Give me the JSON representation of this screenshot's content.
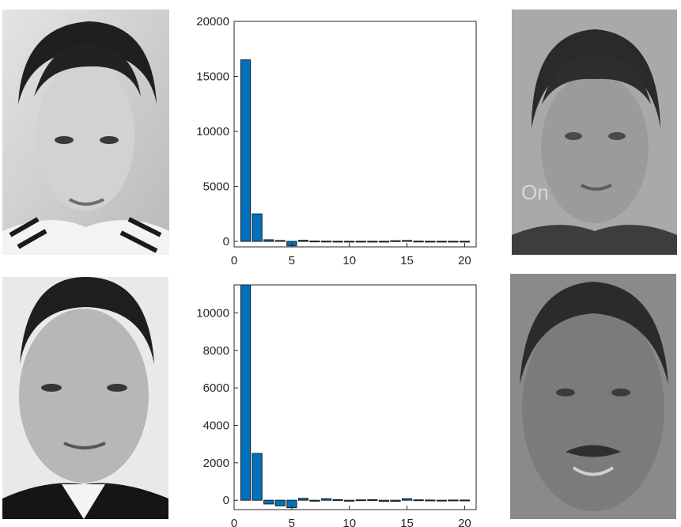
{
  "colors": {
    "bar": "#0072BD",
    "bar_edge": "#1b1b1b",
    "axis": "#262626",
    "background": "#ffffff"
  },
  "photos": [
    {
      "position": "top-left",
      "icon": "face-photo-grayscale"
    },
    {
      "position": "top-right",
      "icon": "face-photo-grayscale"
    },
    {
      "position": "bottom-left",
      "icon": "face-photo-grayscale"
    },
    {
      "position": "bottom-right",
      "icon": "face-photo-grayscale"
    }
  ],
  "photo_texts": {
    "top_right_watermark": "On"
  },
  "chart_data": [
    {
      "type": "bar",
      "title": "",
      "xlabel": "",
      "ylabel": "",
      "xlim": [
        0,
        21
      ],
      "ylim": [
        -500,
        20000
      ],
      "xticks": [
        0,
        5,
        10,
        15,
        20
      ],
      "yticks": [
        0,
        5000,
        10000,
        15000,
        20000
      ],
      "x": [
        1,
        2,
        3,
        4,
        5,
        6,
        7,
        8,
        9,
        10,
        11,
        12,
        13,
        14,
        15,
        16,
        17,
        18,
        19,
        20
      ],
      "values": [
        16500,
        2500,
        150,
        80,
        -400,
        100,
        30,
        20,
        10,
        10,
        10,
        10,
        10,
        60,
        80,
        20,
        10,
        10,
        10,
        10
      ]
    },
    {
      "type": "bar",
      "title": "",
      "xlabel": "",
      "ylabel": "",
      "xlim": [
        0,
        21
      ],
      "ylim": [
        -500,
        11500
      ],
      "xticks": [
        0,
        5,
        10,
        15,
        20
      ],
      "yticks": [
        0,
        2000,
        4000,
        6000,
        8000,
        10000
      ],
      "x": [
        1,
        2,
        3,
        4,
        5,
        6,
        7,
        8,
        9,
        10,
        11,
        12,
        13,
        14,
        15,
        16,
        17,
        18,
        19,
        20
      ],
      "values": [
        11500,
        2500,
        -200,
        -300,
        -400,
        100,
        -50,
        80,
        30,
        -50,
        20,
        30,
        -60,
        -60,
        80,
        20,
        10,
        -40,
        10,
        10
      ]
    }
  ]
}
